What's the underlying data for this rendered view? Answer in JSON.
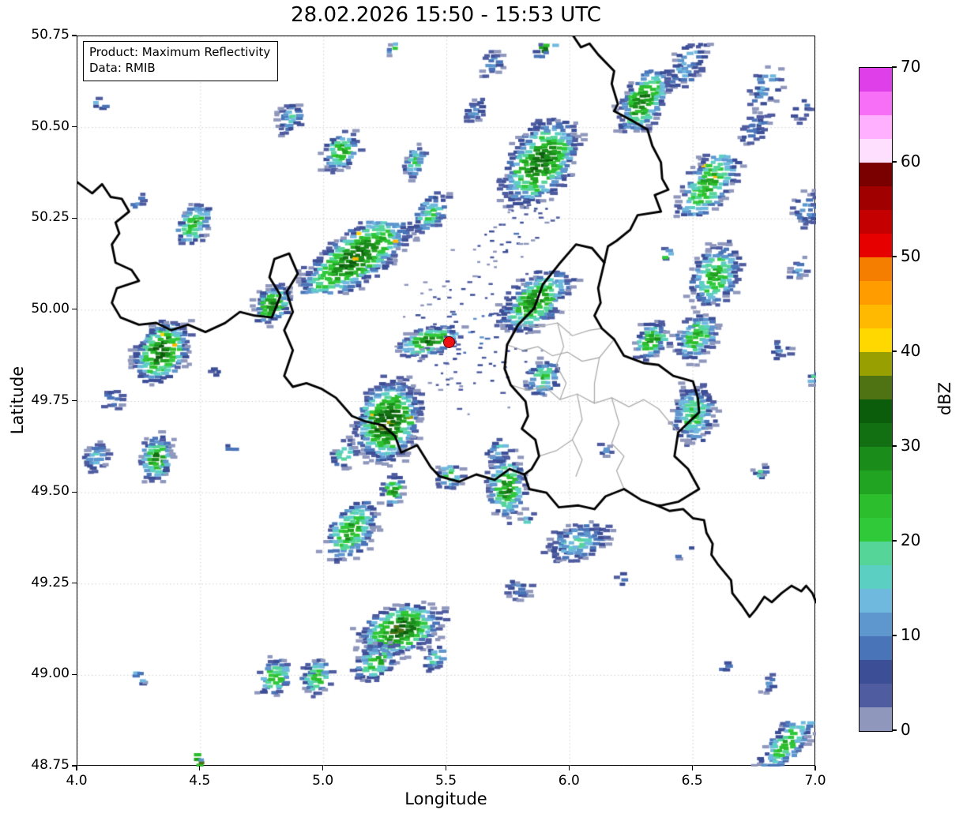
{
  "title": "28.02.2026 15:50 - 15:53 UTC",
  "annotation": {
    "line1": "Product: Maximum Reflectivity",
    "line2": "Data: RMIB"
  },
  "axes": {
    "xlabel": "Longitude",
    "ylabel": "Latitude",
    "xlim": [
      4.0,
      7.0
    ],
    "ylim": [
      48.75,
      50.75
    ],
    "xticks": [
      "4.0",
      "4.5",
      "5.0",
      "5.5",
      "6.0",
      "6.5",
      "7.0"
    ],
    "yticks": [
      "48.75",
      "49.00",
      "49.25",
      "49.50",
      "49.75",
      "50.00",
      "50.25",
      "50.50",
      "50.75"
    ],
    "grid": "dotted light gray at every tick"
  },
  "colorbar": {
    "label": "dBZ",
    "min": 0,
    "max": 70,
    "step": 2.5,
    "ticks": [
      "0",
      "10",
      "20",
      "30",
      "40",
      "50",
      "60",
      "70"
    ],
    "colors": [
      "#8F97BC",
      "#4F5CA0",
      "#3C4E96",
      "#4A74B8",
      "#5E96CE",
      "#6FB8DE",
      "#5CCFC3",
      "#55D598",
      "#2FC93A",
      "#2DBE2D",
      "#21A421",
      "#1A8C1A",
      "#127012",
      "#0B5C0B",
      "#4F7312",
      "#97A000",
      "#FFD800",
      "#FFB900",
      "#FF9C00",
      "#F57D00",
      "#E60000",
      "#C40000",
      "#A10000",
      "#7A0000",
      "#FFDFFE",
      "#FFB0FF",
      "#F76EF7",
      "#DE3FE8"
    ]
  },
  "marker": {
    "name": "radar-site",
    "lon": 5.505,
    "lat": 49.915,
    "color": "#ee1111",
    "edge": "#5c0000"
  },
  "map": {
    "border_black_color": "#000000",
    "border_gray_color": "#ababab",
    "grid_color": "#c8c8c8",
    "borders_black": [
      [
        [
          4.0,
          50.35
        ],
        [
          4.06,
          50.32
        ],
        [
          4.1,
          50.345
        ],
        [
          4.135,
          50.31
        ],
        [
          4.18,
          50.305
        ],
        [
          4.21,
          50.27
        ],
        [
          4.155,
          50.24
        ],
        [
          4.17,
          50.21
        ],
        [
          4.14,
          50.18
        ],
        [
          4.155,
          50.13
        ],
        [
          4.22,
          50.11
        ],
        [
          4.25,
          50.08
        ],
        [
          4.16,
          50.06
        ],
        [
          4.14,
          50.02
        ],
        [
          4.175,
          49.98
        ],
        [
          4.25,
          49.96
        ],
        [
          4.32,
          49.965
        ],
        [
          4.38,
          49.945
        ],
        [
          4.45,
          49.96
        ],
        [
          4.52,
          49.94
        ],
        [
          4.6,
          49.965
        ],
        [
          4.66,
          49.995
        ],
        [
          4.72,
          49.985
        ],
        [
          4.79,
          49.98
        ],
        [
          4.825,
          50.04
        ],
        [
          4.78,
          50.09
        ],
        [
          4.8,
          50.14
        ],
        [
          4.86,
          50.155
        ],
        [
          4.895,
          50.1
        ],
        [
          4.85,
          50.05
        ],
        [
          4.875,
          49.995
        ],
        [
          4.84,
          49.945
        ],
        [
          4.875,
          49.89
        ],
        [
          4.84,
          49.82
        ],
        [
          4.875,
          49.79
        ],
        [
          4.93,
          49.8
        ],
        [
          4.99,
          49.785
        ],
        [
          5.05,
          49.76
        ],
        [
          5.115,
          49.71
        ],
        [
          5.17,
          49.695
        ],
        [
          5.24,
          49.685
        ],
        [
          5.29,
          49.655
        ],
        [
          5.315,
          49.61
        ],
        [
          5.38,
          49.63
        ],
        [
          5.435,
          49.57
        ],
        [
          5.47,
          49.545
        ],
        [
          5.55,
          49.53
        ],
        [
          5.62,
          49.55
        ],
        [
          5.695,
          49.535
        ],
        [
          5.755,
          49.565
        ],
        [
          5.815,
          49.55
        ],
        [
          5.835,
          49.51
        ],
        [
          5.905,
          49.5
        ],
        [
          5.955,
          49.46
        ],
        [
          6.035,
          49.465
        ],
        [
          6.1,
          49.455
        ],
        [
          6.145,
          49.49
        ],
        [
          6.22,
          49.51
        ],
        [
          6.29,
          49.48
        ],
        [
          6.355,
          49.465
        ]
      ],
      [
        [
          6.015,
          50.75
        ],
        [
          6.045,
          50.72
        ],
        [
          6.08,
          50.73
        ],
        [
          6.115,
          50.7
        ],
        [
          6.18,
          50.655
        ],
        [
          6.17,
          50.62
        ],
        [
          6.195,
          50.565
        ],
        [
          6.18,
          50.545
        ],
        [
          6.25,
          50.52
        ],
        [
          6.315,
          50.495
        ],
        [
          6.335,
          50.45
        ],
        [
          6.37,
          50.405
        ],
        [
          6.375,
          50.36
        ],
        [
          6.4,
          50.33
        ],
        [
          6.345,
          50.315
        ],
        [
          6.37,
          50.27
        ],
        [
          6.275,
          50.26
        ],
        [
          6.245,
          50.22
        ],
        [
          6.19,
          50.19
        ],
        [
          6.155,
          50.175
        ],
        [
          6.14,
          50.13
        ]
      ],
      [
        [
          6.14,
          50.13
        ],
        [
          6.115,
          50.06
        ],
        [
          6.125,
          50.02
        ],
        [
          6.1,
          49.985
        ],
        [
          6.13,
          49.95
        ],
        [
          6.18,
          49.92
        ],
        [
          6.22,
          49.875
        ],
        [
          6.3,
          49.855
        ],
        [
          6.36,
          49.85
        ],
        [
          6.42,
          49.82
        ],
        [
          6.5,
          49.805
        ],
        [
          6.52,
          49.76
        ],
        [
          6.525,
          49.72
        ],
        [
          6.44,
          49.665
        ],
        [
          6.425,
          49.6
        ],
        [
          6.48,
          49.565
        ],
        [
          6.525,
          49.51
        ],
        [
          6.44,
          49.475
        ],
        [
          6.37,
          49.465
        ],
        [
          6.355,
          49.465
        ]
      ],
      [
        [
          6.14,
          50.13
        ],
        [
          6.09,
          50.17
        ],
        [
          6.025,
          50.18
        ],
        [
          5.955,
          50.125
        ],
        [
          5.89,
          50.07
        ],
        [
          5.855,
          50.005
        ],
        [
          5.79,
          49.96
        ],
        [
          5.745,
          49.905
        ],
        [
          5.735,
          49.84
        ],
        [
          5.76,
          49.795
        ],
        [
          5.82,
          49.75
        ],
        [
          5.83,
          49.71
        ],
        [
          5.805,
          49.675
        ],
        [
          5.86,
          49.645
        ],
        [
          5.875,
          49.6
        ],
        [
          5.845,
          49.565
        ],
        [
          5.815,
          49.55
        ]
      ],
      [
        [
          6.355,
          49.465
        ],
        [
          6.405,
          49.45
        ],
        [
          6.46,
          49.455
        ],
        [
          6.5,
          49.43
        ],
        [
          6.545,
          49.425
        ],
        [
          6.555,
          49.39
        ],
        [
          6.58,
          49.36
        ],
        [
          6.575,
          49.33
        ],
        [
          6.6,
          49.305
        ],
        [
          6.655,
          49.26
        ],
        [
          6.66,
          49.225
        ],
        [
          6.7,
          49.19
        ],
        [
          6.73,
          49.16
        ],
        [
          6.755,
          49.18
        ],
        [
          6.79,
          49.215
        ],
        [
          6.82,
          49.2
        ],
        [
          6.86,
          49.225
        ],
        [
          6.9,
          49.245
        ],
        [
          6.94,
          49.23
        ],
        [
          6.96,
          49.245
        ],
        [
          6.985,
          49.225
        ],
        [
          7.0,
          49.2
        ]
      ]
    ],
    "borders_gray": [
      [
        [
          5.79,
          49.96
        ],
        [
          5.875,
          49.955
        ],
        [
          5.95,
          49.965
        ],
        [
          6.01,
          49.93
        ],
        [
          6.08,
          49.945
        ],
        [
          6.13,
          49.95
        ]
      ],
      [
        [
          5.745,
          49.905
        ],
        [
          5.81,
          49.89
        ],
        [
          5.87,
          49.9
        ],
        [
          5.93,
          49.875
        ],
        [
          5.99,
          49.885
        ],
        [
          6.05,
          49.86
        ],
        [
          6.12,
          49.87
        ],
        [
          6.18,
          49.92
        ]
      ],
      [
        [
          5.95,
          49.965
        ],
        [
          5.975,
          49.9
        ],
        [
          5.945,
          49.85
        ],
        [
          5.985,
          49.8
        ],
        [
          5.96,
          49.755
        ]
      ],
      [
        [
          5.76,
          49.795
        ],
        [
          5.83,
          49.78
        ],
        [
          5.9,
          49.79
        ],
        [
          5.96,
          49.755
        ],
        [
          6.03,
          49.77
        ],
        [
          6.1,
          49.745
        ],
        [
          6.17,
          49.76
        ],
        [
          6.24,
          49.735
        ],
        [
          6.3,
          49.755
        ],
        [
          6.36,
          49.73
        ],
        [
          6.44,
          49.665
        ]
      ],
      [
        [
          6.12,
          49.87
        ],
        [
          6.1,
          49.8
        ],
        [
          6.1,
          49.745
        ]
      ],
      [
        [
          6.03,
          49.77
        ],
        [
          6.05,
          49.7
        ],
        [
          6.01,
          49.645
        ],
        [
          6.05,
          49.59
        ],
        [
          6.025,
          49.545
        ]
      ],
      [
        [
          5.875,
          49.6
        ],
        [
          5.945,
          49.615
        ],
        [
          6.01,
          49.645
        ]
      ],
      [
        [
          6.17,
          49.76
        ],
        [
          6.2,
          49.69
        ],
        [
          6.17,
          49.635
        ],
        [
          6.22,
          49.6
        ],
        [
          6.19,
          49.56
        ],
        [
          6.22,
          49.51
        ]
      ]
    ],
    "echo_format": "[lon, lat, radius_lon_deg, radius_lat_deg, tilt_deg, peak_dbz, density, yellow_spikes]",
    "echoes": [
      [
        5.87,
        50.41,
        0.17,
        0.1,
        30,
        33,
        0.85,
        0
      ],
      [
        6.29,
        50.58,
        0.13,
        0.07,
        38,
        31,
        0.85,
        0
      ],
      [
        6.47,
        50.68,
        0.1,
        0.05,
        40,
        14,
        0.8,
        0
      ],
      [
        6.55,
        50.35,
        0.17,
        0.07,
        40,
        26,
        0.8,
        1
      ],
      [
        6.74,
        50.5,
        0.07,
        0.04,
        40,
        12,
        0.7,
        0
      ],
      [
        6.79,
        50.62,
        0.09,
        0.05,
        40,
        14,
        0.55,
        0
      ],
      [
        6.95,
        50.28,
        0.06,
        0.05,
        30,
        12,
        0.7,
        0
      ],
      [
        6.58,
        50.1,
        0.11,
        0.08,
        30,
        26,
        0.85,
        0
      ],
      [
        6.5,
        49.93,
        0.09,
        0.06,
        25,
        26,
        0.85,
        0
      ],
      [
        6.49,
        49.72,
        0.09,
        0.08,
        25,
        23,
        0.85,
        0
      ],
      [
        6.38,
        50.16,
        0.025,
        0.015,
        40,
        26,
        0.9,
        0
      ],
      [
        5.67,
        50.68,
        0.05,
        0.035,
        20,
        12,
        0.7,
        0
      ],
      [
        5.89,
        50.72,
        0.045,
        0.015,
        25,
        36,
        0.9,
        1
      ],
      [
        4.85,
        50.53,
        0.06,
        0.04,
        30,
        16,
        0.8,
        0
      ],
      [
        5.06,
        50.44,
        0.08,
        0.05,
        25,
        26,
        0.85,
        0
      ],
      [
        5.36,
        50.41,
        0.05,
        0.04,
        30,
        22,
        0.85,
        0
      ],
      [
        4.46,
        50.24,
        0.08,
        0.05,
        30,
        26,
        0.85,
        0
      ],
      [
        4.23,
        50.3,
        0.035,
        0.02,
        30,
        12,
        0.8,
        0
      ],
      [
        5.12,
        50.15,
        0.26,
        0.08,
        25,
        33,
        0.9,
        1
      ],
      [
        4.78,
        50.02,
        0.08,
        0.05,
        20,
        30,
        0.9,
        1
      ],
      [
        5.42,
        50.27,
        0.08,
        0.05,
        30,
        20,
        0.8,
        0
      ],
      [
        4.33,
        49.89,
        0.12,
        0.08,
        25,
        33,
        0.9,
        1
      ],
      [
        4.13,
        49.76,
        0.04,
        0.03,
        0,
        12,
        0.7,
        0
      ],
      [
        4.31,
        49.6,
        0.07,
        0.06,
        20,
        29,
        0.85,
        0
      ],
      [
        4.06,
        49.6,
        0.05,
        0.04,
        20,
        14,
        0.75,
        0
      ],
      [
        4.55,
        49.84,
        0.03,
        0.02,
        0,
        10,
        0.7,
        0
      ],
      [
        5.42,
        49.92,
        0.13,
        0.04,
        10,
        31,
        0.9,
        1
      ],
      [
        5.62,
        49.95,
        0.3,
        0.2,
        0,
        7,
        0.05,
        0
      ],
      [
        5.85,
        50.03,
        0.16,
        0.07,
        25,
        29,
        0.9,
        1
      ],
      [
        6.32,
        49.92,
        0.07,
        0.05,
        25,
        29,
        0.9,
        1
      ],
      [
        5.88,
        49.82,
        0.07,
        0.05,
        20,
        24,
        0.85,
        0
      ],
      [
        5.25,
        49.7,
        0.14,
        0.11,
        25,
        35,
        0.9,
        1
      ],
      [
        5.07,
        49.61,
        0.05,
        0.04,
        20,
        24,
        0.85,
        0
      ],
      [
        5.5,
        49.55,
        0.05,
        0.04,
        10,
        22,
        0.8,
        0
      ],
      [
        5.73,
        49.52,
        0.08,
        0.09,
        10,
        29,
        0.85,
        0
      ],
      [
        5.7,
        49.62,
        0.05,
        0.03,
        20,
        18,
        0.8,
        0
      ],
      [
        5.1,
        49.4,
        0.12,
        0.07,
        35,
        27,
        0.85,
        0
      ],
      [
        5.27,
        49.51,
        0.05,
        0.04,
        30,
        31,
        0.9,
        0
      ],
      [
        5.3,
        49.13,
        0.17,
        0.07,
        10,
        35,
        0.9,
        0
      ],
      [
        5.2,
        49.04,
        0.09,
        0.05,
        20,
        26,
        0.85,
        0
      ],
      [
        4.79,
        49.0,
        0.07,
        0.05,
        20,
        26,
        0.85,
        0
      ],
      [
        4.96,
        49.0,
        0.06,
        0.05,
        20,
        24,
        0.85,
        0
      ],
      [
        5.78,
        49.24,
        0.05,
        0.03,
        0,
        10,
        0.7,
        0
      ],
      [
        6.02,
        49.37,
        0.13,
        0.05,
        10,
        17,
        0.8,
        0
      ],
      [
        5.82,
        49.43,
        0.022,
        0.012,
        40,
        24,
        0.9,
        0
      ],
      [
        6.87,
        48.82,
        0.14,
        0.05,
        35,
        25,
        0.85,
        0
      ],
      [
        6.8,
        48.98,
        0.04,
        0.02,
        40,
        10,
        0.7,
        0
      ],
      [
        4.24,
        49.0,
        0.03,
        0.015,
        -40,
        22,
        0.9,
        0
      ],
      [
        4.48,
        48.77,
        0.045,
        0.012,
        -40,
        39,
        0.95,
        0
      ],
      [
        4.08,
        50.57,
        0.025,
        0.012,
        -40,
        19,
        0.9,
        0
      ],
      [
        6.92,
        50.12,
        0.05,
        0.03,
        30,
        12,
        0.6,
        0
      ],
      [
        6.98,
        49.82,
        0.03,
        0.015,
        30,
        19,
        0.8,
        0
      ],
      [
        6.76,
        49.56,
        0.035,
        0.02,
        30,
        15,
        0.7,
        0
      ],
      [
        5.6,
        50.55,
        0.045,
        0.03,
        30,
        12,
        0.7,
        0
      ],
      [
        5.75,
        50.22,
        0.2,
        0.07,
        20,
        8,
        0.07,
        0
      ],
      [
        6.2,
        49.27,
        0.03,
        0.02,
        30,
        10,
        0.6,
        0
      ],
      [
        6.45,
        49.34,
        0.03,
        0.015,
        30,
        12,
        0.7,
        0
      ],
      [
        5.27,
        50.72,
        0.03,
        0.015,
        30,
        23,
        0.9,
        0
      ],
      [
        6.62,
        49.03,
        0.03,
        0.015,
        30,
        10,
        0.7,
        0
      ],
      [
        5.44,
        49.05,
        0.05,
        0.03,
        20,
        20,
        0.8,
        0
      ],
      [
        6.93,
        50.55,
        0.04,
        0.025,
        40,
        12,
        0.6,
        0
      ],
      [
        6.13,
        49.62,
        0.03,
        0.02,
        0,
        8,
        0.5,
        0
      ],
      [
        6.85,
        49.9,
        0.05,
        0.03,
        30,
        12,
        0.6,
        0
      ],
      [
        4.62,
        49.63,
        0.03,
        0.02,
        30,
        10,
        0.6,
        0
      ]
    ]
  }
}
